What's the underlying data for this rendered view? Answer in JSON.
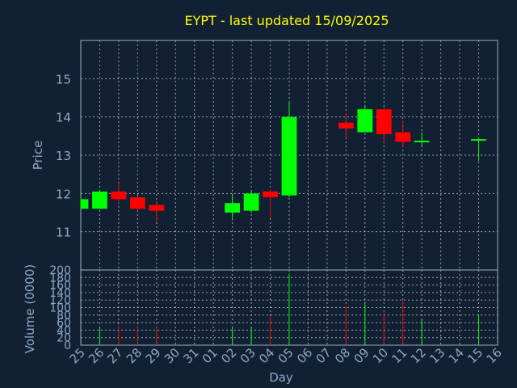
{
  "chart_data": {
    "type": "candlestick",
    "title": "EYPT - last updated 15/09/2025",
    "xlabel": "Day",
    "ylabel": "Price",
    "volume_label": "Volume (0000)",
    "ylim": [
      10,
      16
    ],
    "volume_ylim": [
      0,
      200
    ],
    "price_ticks": [
      11,
      12,
      13,
      14,
      15
    ],
    "volume_ticks": [
      0,
      20,
      40,
      60,
      80,
      100,
      120,
      140,
      160,
      180,
      200
    ],
    "grid": true,
    "x_labels": [
      "25",
      "26",
      "27",
      "28",
      "29",
      "30",
      "31",
      "01",
      "02",
      "03",
      "04",
      "05",
      "06",
      "07",
      "08",
      "09",
      "10",
      "11",
      "12",
      "13",
      "14",
      "15",
      "16"
    ],
    "candles": [
      {
        "day": "25",
        "open": 11.6,
        "close": 11.85,
        "high": 11.9,
        "low": 11.6,
        "volume": 0
      },
      {
        "day": "26",
        "open": 11.6,
        "close": 12.05,
        "high": 12.1,
        "low": 11.6,
        "volume": 45
      },
      {
        "day": "27",
        "open": 12.05,
        "close": 11.85,
        "high": 12.25,
        "low": 11.75,
        "volume": 50
      },
      {
        "day": "28",
        "open": 11.9,
        "close": 11.6,
        "high": 11.95,
        "low": 11.55,
        "volume": 50
      },
      {
        "day": "29",
        "open": 11.7,
        "close": 11.55,
        "high": 11.8,
        "low": 11.25,
        "volume": 48
      },
      {
        "day": "02",
        "open": 11.5,
        "close": 11.75,
        "high": 12.0,
        "low": 11.3,
        "volume": 50
      },
      {
        "day": "03",
        "open": 11.55,
        "close": 12.0,
        "high": 12.05,
        "low": 11.5,
        "volume": 45
      },
      {
        "day": "04",
        "open": 12.05,
        "close": 11.9,
        "high": 12.1,
        "low": 11.35,
        "volume": 75
      },
      {
        "day": "05",
        "open": 11.95,
        "close": 14.0,
        "high": 14.4,
        "low": 11.9,
        "volume": 190
      },
      {
        "day": "08",
        "open": 13.85,
        "close": 13.7,
        "high": 14.1,
        "low": 13.45,
        "volume": 105
      },
      {
        "day": "09",
        "open": 13.6,
        "close": 14.2,
        "high": 14.3,
        "low": 13.6,
        "volume": 115
      },
      {
        "day": "10",
        "open": 14.2,
        "close": 13.55,
        "high": 14.25,
        "low": 13.3,
        "volume": 90
      },
      {
        "day": "11",
        "open": 13.6,
        "close": 13.35,
        "high": 13.9,
        "low": 13.2,
        "volume": 118
      },
      {
        "day": "12",
        "open": 13.35,
        "close": 13.38,
        "high": 13.6,
        "low": 13.25,
        "volume": 68
      },
      {
        "day": "15",
        "open": 13.38,
        "close": 13.42,
        "high": 13.45,
        "low": 12.85,
        "volume": 80
      }
    ],
    "colors": {
      "up": "#00ff00",
      "down": "#ff0000",
      "background": "#112033",
      "text": "#8fa8c8",
      "title": "#ffff00"
    }
  }
}
